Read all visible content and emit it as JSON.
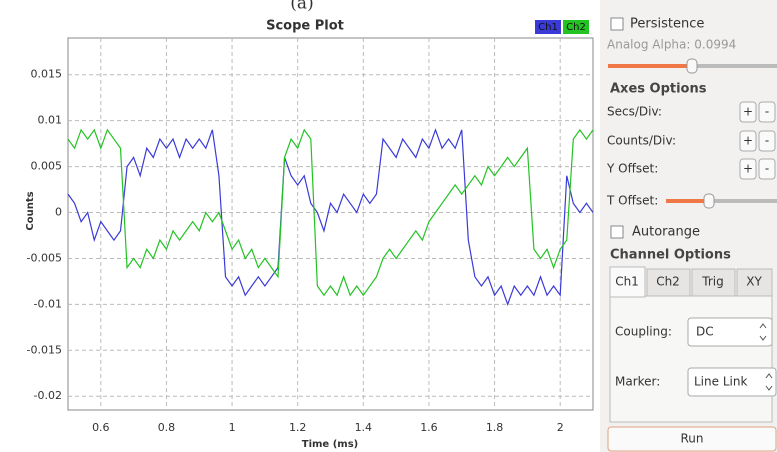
{
  "caption": "(a)",
  "chart_data": {
    "type": "line",
    "title": "Scope Plot",
    "xlabel": "Time (ms)",
    "ylabel": "Counts",
    "x": [
      0.5,
      0.52,
      0.54,
      0.56,
      0.58,
      0.6,
      0.62,
      0.64,
      0.66,
      0.68,
      0.7,
      0.72,
      0.74,
      0.76,
      0.78,
      0.8,
      0.82,
      0.84,
      0.86,
      0.88,
      0.9,
      0.92,
      0.94,
      0.96,
      0.98,
      1.0,
      1.02,
      1.04,
      1.06,
      1.08,
      1.1,
      1.12,
      1.14,
      1.16,
      1.18,
      1.2,
      1.22,
      1.24,
      1.26,
      1.28,
      1.3,
      1.32,
      1.34,
      1.36,
      1.38,
      1.4,
      1.42,
      1.44,
      1.46,
      1.48,
      1.5,
      1.52,
      1.54,
      1.56,
      1.58,
      1.6,
      1.62,
      1.64,
      1.66,
      1.68,
      1.7,
      1.72,
      1.74,
      1.76,
      1.78,
      1.8,
      1.82,
      1.84,
      1.86,
      1.88,
      1.9,
      1.92,
      1.94,
      1.96,
      1.98,
      2.0,
      2.02,
      2.04,
      2.06,
      2.08,
      2.1
    ],
    "series": [
      {
        "name": "Ch1",
        "color": "#3a3ad8",
        "values": [
          0.002,
          0.001,
          -0.001,
          0.0,
          -0.003,
          -0.001,
          -0.002,
          -0.003,
          -0.002,
          0.005,
          0.006,
          0.004,
          0.007,
          0.006,
          0.008,
          0.007,
          0.008,
          0.006,
          0.008,
          0.007,
          0.008,
          0.007,
          0.009,
          0.004,
          -0.007,
          -0.008,
          -0.007,
          -0.009,
          -0.008,
          -0.007,
          -0.008,
          -0.007,
          -0.006,
          0.006,
          0.004,
          0.003,
          0.004,
          0.001,
          0.0,
          -0.002,
          0.001,
          0.0,
          0.002,
          0.001,
          0.0,
          0.002,
          0.001,
          0.002,
          0.008,
          0.007,
          0.006,
          0.008,
          0.007,
          0.006,
          0.008,
          0.007,
          0.009,
          0.007,
          0.008,
          0.007,
          0.009,
          -0.003,
          -0.007,
          -0.008,
          -0.007,
          -0.009,
          -0.008,
          -0.01,
          -0.008,
          -0.009,
          -0.008,
          -0.009,
          -0.007,
          -0.009,
          -0.008,
          -0.009,
          0.004,
          0.001,
          0.0,
          0.001,
          0.0
        ]
      },
      {
        "name": "Ch2",
        "color": "#22c322",
        "values": [
          0.008,
          0.007,
          0.009,
          0.008,
          0.009,
          0.007,
          0.009,
          0.008,
          0.007,
          -0.006,
          -0.005,
          -0.006,
          -0.004,
          -0.005,
          -0.003,
          -0.004,
          -0.002,
          -0.003,
          -0.002,
          -0.001,
          -0.002,
          0.0,
          -0.001,
          0.0,
          -0.002,
          -0.004,
          -0.003,
          -0.005,
          -0.004,
          -0.006,
          -0.005,
          -0.006,
          -0.007,
          0.006,
          0.008,
          0.007,
          0.009,
          0.008,
          -0.008,
          -0.009,
          -0.008,
          -0.009,
          -0.007,
          -0.009,
          -0.008,
          -0.009,
          -0.008,
          -0.007,
          -0.005,
          -0.004,
          -0.005,
          -0.004,
          -0.003,
          -0.002,
          -0.003,
          -0.001,
          0.0,
          0.001,
          0.002,
          0.003,
          0.002,
          0.003,
          0.004,
          0.003,
          0.005,
          0.004,
          0.005,
          0.006,
          0.005,
          0.006,
          0.007,
          -0.004,
          -0.005,
          -0.004,
          -0.006,
          -0.004,
          -0.003,
          0.008,
          0.009,
          0.008,
          0.009
        ]
      }
    ],
    "xlim": [
      0.5,
      2.1
    ],
    "ylim": [
      -0.0215,
      0.019
    ],
    "xticks": [
      0.6,
      0.8,
      1,
      1.2,
      1.4,
      1.6,
      1.8,
      2
    ],
    "yticks": [
      0.015,
      0.01,
      0.005,
      0,
      -0.005,
      -0.01,
      -0.015,
      -0.02
    ],
    "grid": true,
    "legend": "upper right"
  },
  "panel": {
    "persistence": "Persistence",
    "alpha": "Analog Alpha: 0.0994",
    "axes_title": "Axes Options",
    "axes": [
      "Secs/Div:",
      "Counts/Div:",
      "Y Offset:"
    ],
    "plus": "+",
    "minus": "-",
    "t_offset": "T Offset:",
    "autorange": "Autorange",
    "channel_title": "Channel Options",
    "tabs": [
      "Ch1",
      "Ch2",
      "Trig",
      "XY"
    ],
    "coupling_label": "Coupling:",
    "coupling_value": "DC",
    "marker_label": "Marker:",
    "marker_value": "Line Link",
    "run": "Run"
  }
}
